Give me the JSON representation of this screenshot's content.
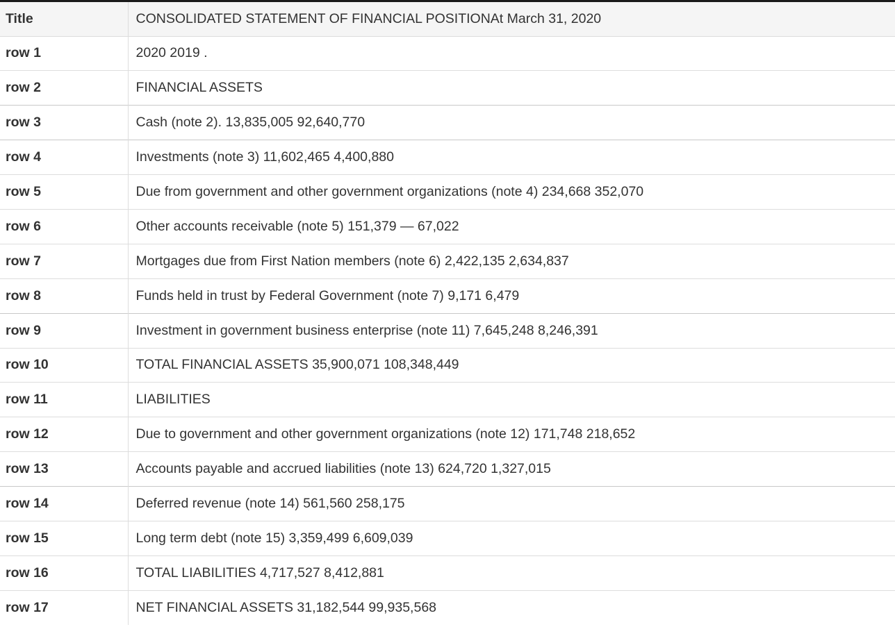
{
  "header": {
    "label": "Title",
    "value": "CONSOLIDATED STATEMENT OF FINANCIAL POSITIONAt March 31, 2020"
  },
  "rows": [
    {
      "label": "row 1",
      "value": "2020 2019 ."
    },
    {
      "label": "row 2",
      "value": "FINANCIAL ASSETS"
    },
    {
      "label": "row 3",
      "value": "Cash (note 2). 13,835,005 92,640,770"
    },
    {
      "label": "row 4",
      "value": "Investments (note 3) 11,602,465 4,400,880"
    },
    {
      "label": "row 5",
      "value": "Due from government and other government organizations (note 4) 234,668 352,070"
    },
    {
      "label": "row 6",
      "value": "Other accounts receivable (note 5) 151,379 — 67,022"
    },
    {
      "label": "row 7",
      "value": "Mortgages due from First Nation members (note 6) 2,422,135 2,634,837"
    },
    {
      "label": "row 8",
      "value": "Funds held in trust by Federal Government (note 7) 9,171 6,479"
    },
    {
      "label": "row 9",
      "value": "Investment in government business enterprise (note 11) 7,645,248 8,246,391"
    },
    {
      "label": "row 10",
      "value": "TOTAL FINANCIAL ASSETS 35,900,071 108,348,449"
    },
    {
      "label": "row 11",
      "value": "LIABILITIES"
    },
    {
      "label": "row 12",
      "value": "Due to government and other government organizations (note 12) 171,748 218,652"
    },
    {
      "label": "row 13",
      "value": "Accounts payable and accrued liabilities (note 13) 624,720 1,327,015"
    },
    {
      "label": "row 14",
      "value": "Deferred revenue (note 14) 561,560 258,175"
    },
    {
      "label": "row 15",
      "value": "Long term debt (note 15) 3,359,499 6,609,039"
    },
    {
      "label": "row 16",
      "value": "TOTAL LIABILITIES 4,717,527 8,412,881"
    },
    {
      "label": "row 17",
      "value": "NET FINANCIAL ASSETS 31,182,544 99,935,568"
    }
  ]
}
